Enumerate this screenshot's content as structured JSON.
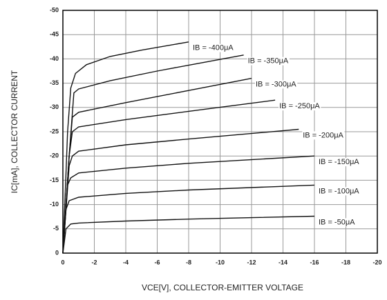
{
  "chart_data": {
    "type": "line",
    "xlabel": "VCE[V], COLLECTOR-EMITTER VOLTAGE",
    "ylabel": "IC[mA], COLLECTOR CURRENT",
    "xlim": [
      0,
      -20
    ],
    "ylim": [
      0,
      -50
    ],
    "xticks": [
      0,
      -2,
      -4,
      -6,
      -8,
      -10,
      -12,
      -14,
      -16,
      -18,
      -20
    ],
    "yticks": [
      0,
      -5,
      -10,
      -15,
      -20,
      -25,
      -30,
      -35,
      -40,
      -45,
      -50
    ],
    "grid": true,
    "series": [
      {
        "name": "IB = -400μA",
        "color": "#111111",
        "x": [
          0,
          -0.3,
          -0.5,
          -0.8,
          -1.5,
          -3,
          -5,
          -8
        ],
        "values": [
          0,
          -25,
          -34,
          -37,
          -38.8,
          -40.5,
          -41.8,
          -43.5
        ]
      },
      {
        "name": "IB = -350μA",
        "color": "#111111",
        "x": [
          0,
          -0.4,
          -0.7,
          -1,
          -3,
          -6,
          -9,
          -11.5
        ],
        "values": [
          0,
          -20,
          -33,
          -33.8,
          -35.5,
          -37.5,
          -39.3,
          -40.8
        ]
      },
      {
        "name": "IB = -300μA",
        "color": "#111111",
        "x": [
          0,
          -0.4,
          -0.6,
          -1,
          -4,
          -8,
          -12
        ],
        "values": [
          0,
          -20,
          -28,
          -29,
          -31,
          -33.5,
          -36
        ]
      },
      {
        "name": "IB = -250μA",
        "color": "#111111",
        "x": [
          0,
          -0.4,
          -0.6,
          -1,
          -4,
          -8,
          -13.5
        ],
        "values": [
          0,
          -20,
          -25,
          -26,
          -27.5,
          -29.2,
          -31.5
        ]
      },
      {
        "name": "IB = -200μA",
        "color": "#111111",
        "x": [
          0,
          -0.4,
          -0.6,
          -1,
          -4,
          -8,
          -15
        ],
        "values": [
          0,
          -18,
          -20,
          -21,
          -22.3,
          -23.5,
          -25.5
        ]
      },
      {
        "name": "IB = -150μA",
        "color": "#111111",
        "x": [
          0,
          -0.3,
          -0.5,
          -1,
          -4,
          -8,
          -16
        ],
        "values": [
          0,
          -14,
          -15.5,
          -16.5,
          -17.5,
          -18.5,
          -20
        ]
      },
      {
        "name": "IB = -100μA",
        "color": "#111111",
        "x": [
          0,
          -0.2,
          -0.4,
          -1,
          -4,
          -8,
          -16
        ],
        "values": [
          0,
          -9,
          -10.8,
          -11.5,
          -12.3,
          -13,
          -14
        ]
      },
      {
        "name": "IB = -50μA",
        "color": "#111111",
        "x": [
          0,
          -0.2,
          -0.5,
          -1,
          -4,
          -8,
          -12,
          -16
        ],
        "values": [
          0,
          -5,
          -6,
          -6.2,
          -6.6,
          -7,
          -7.3,
          -7.6
        ]
      }
    ]
  }
}
